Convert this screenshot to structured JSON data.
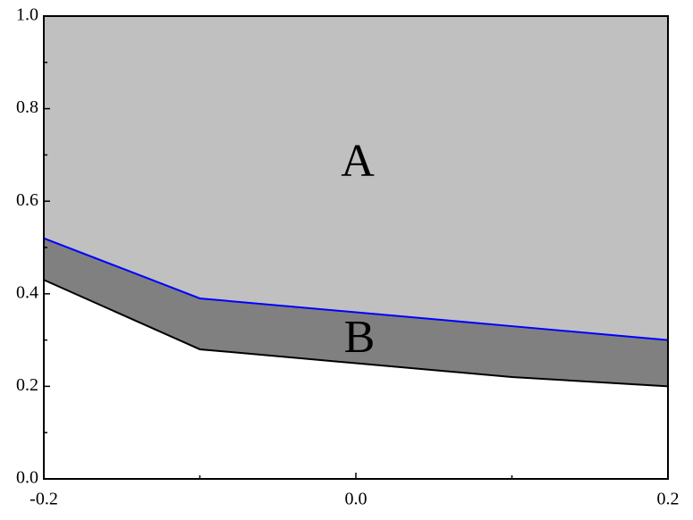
{
  "chart_data": {
    "type": "area",
    "x": [
      -0.2,
      -0.1,
      0.0,
      0.1,
      0.2
    ],
    "series": [
      {
        "color": "#0000ff",
        "fill": "#c0c0c0",
        "values": [
          0.52,
          0.39,
          0.36,
          0.33,
          0.3
        ]
      },
      {
        "color": "#000000",
        "fill": "#808080",
        "values": [
          0.43,
          0.28,
          0.25,
          0.22,
          0.2
        ]
      }
    ],
    "annotations": [
      "A",
      "B"
    ],
    "xlim": [
      -0.2,
      0.2
    ],
    "ylim": [
      0,
      1
    ],
    "xticks": [
      {
        "value": -0.2,
        "label": "-0.2"
      },
      {
        "value": 0,
        "label": "0.0"
      },
      {
        "value": 0.2,
        "label": "0.2"
      }
    ],
    "yticks": [
      {
        "value": 0,
        "label": "0.0"
      },
      0.2,
      0.4,
      0.6,
      0.8,
      {
        "value": 1,
        "label": "1.0"
      }
    ]
  }
}
